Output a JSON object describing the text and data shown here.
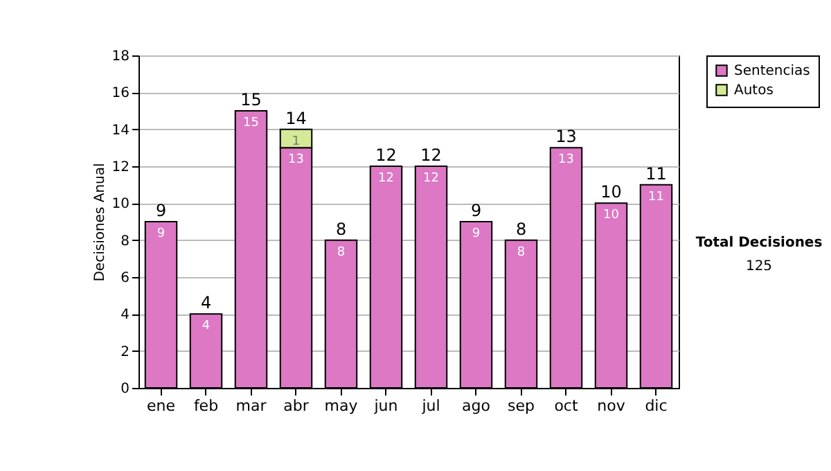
{
  "chart_data": {
    "type": "bar",
    "ylabel": "Decisiones Anual",
    "categories": [
      "ene",
      "feb",
      "mar",
      "abr",
      "may",
      "jun",
      "jul",
      "ago",
      "sep",
      "oct",
      "nov",
      "dic"
    ],
    "stacked": true,
    "series": [
      {
        "name": "Sentencias",
        "color": "#dc78c4",
        "values": [
          9,
          4,
          15,
          13,
          8,
          12,
          12,
          9,
          8,
          13,
          10,
          11
        ],
        "value_labels": [
          "9",
          "4",
          "15",
          "13",
          "8",
          "12",
          "12",
          "9",
          "8",
          "13",
          "10",
          "11"
        ]
      },
      {
        "name": "Autos",
        "color": "#d4ea96",
        "values": [
          null,
          null,
          null,
          1,
          null,
          null,
          null,
          null,
          null,
          null,
          null,
          null
        ],
        "value_labels": [
          null,
          null,
          null,
          "1",
          null,
          null,
          null,
          null,
          null,
          null,
          null,
          null
        ]
      }
    ],
    "totals": [
      "9",
      "4",
      "15",
      "14",
      "8",
      "12",
      "12",
      "9",
      "8",
      "13",
      "10",
      "11"
    ],
    "ylim": [
      0,
      18
    ],
    "yticks": [
      0,
      2,
      4,
      6,
      8,
      10,
      12,
      14,
      16,
      18
    ],
    "grid": "y",
    "legend": "top right",
    "annotations": [
      "Total Decisiones",
      "125"
    ]
  }
}
